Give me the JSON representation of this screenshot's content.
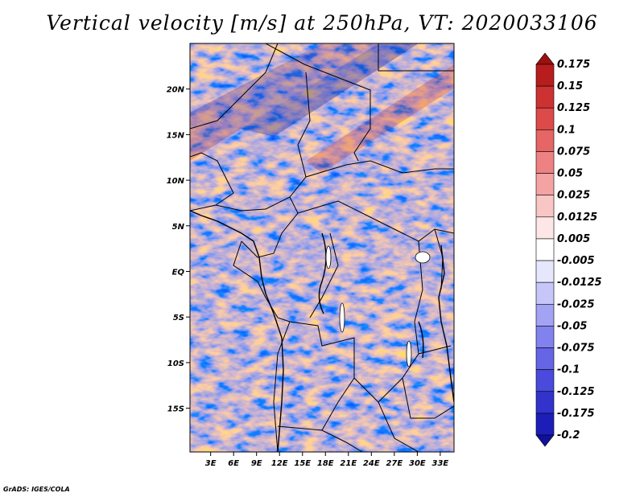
{
  "chart_data": {
    "type": "heatmap",
    "title": "Vertical velocity [m/s] at 250hPa, VT: 2020033106",
    "variable": "Vertical velocity",
    "units": "m/s",
    "level": "250hPa",
    "valid_time": "2020033106",
    "x_ticks": [
      "3E",
      "6E",
      "9E",
      "12E",
      "15E",
      "18E",
      "21E",
      "24E",
      "27E",
      "30E",
      "33E"
    ],
    "x_tick_values": [
      3,
      6,
      9,
      12,
      15,
      18,
      21,
      24,
      27,
      30,
      33
    ],
    "y_ticks": [
      "20N",
      "15N",
      "10N",
      "5N",
      "EQ",
      "5S",
      "10S",
      "15S"
    ],
    "y_tick_values": [
      20,
      15,
      10,
      5,
      0,
      -5,
      -10,
      -15
    ],
    "xlim": [
      0.3,
      34.8
    ],
    "ylim": [
      -19.8,
      25.0
    ],
    "colorbar": {
      "labels": [
        "0.175",
        "0.15",
        "0.125",
        "0.1",
        "0.075",
        "0.05",
        "0.025",
        "0.0125",
        "0.005",
        "-0.005",
        "-0.0125",
        "-0.025",
        "-0.05",
        "-0.075",
        "-0.1",
        "-0.125",
        "-0.175",
        "-0.2"
      ],
      "colors": [
        "#9b1010",
        "#b81d1d",
        "#cc3232",
        "#dc4a4a",
        "#e66565",
        "#ee8282",
        "#f4a3a3",
        "#f9c6c6",
        "#fde6e6",
        "#ffffff",
        "#e6e6fd",
        "#c6c6f9",
        "#a3a3f4",
        "#8282ee",
        "#6565e6",
        "#4a4adc",
        "#3232cc",
        "#1d1db8",
        "#10109b"
      ]
    },
    "credit": "GrADS: IGES/COLA"
  }
}
